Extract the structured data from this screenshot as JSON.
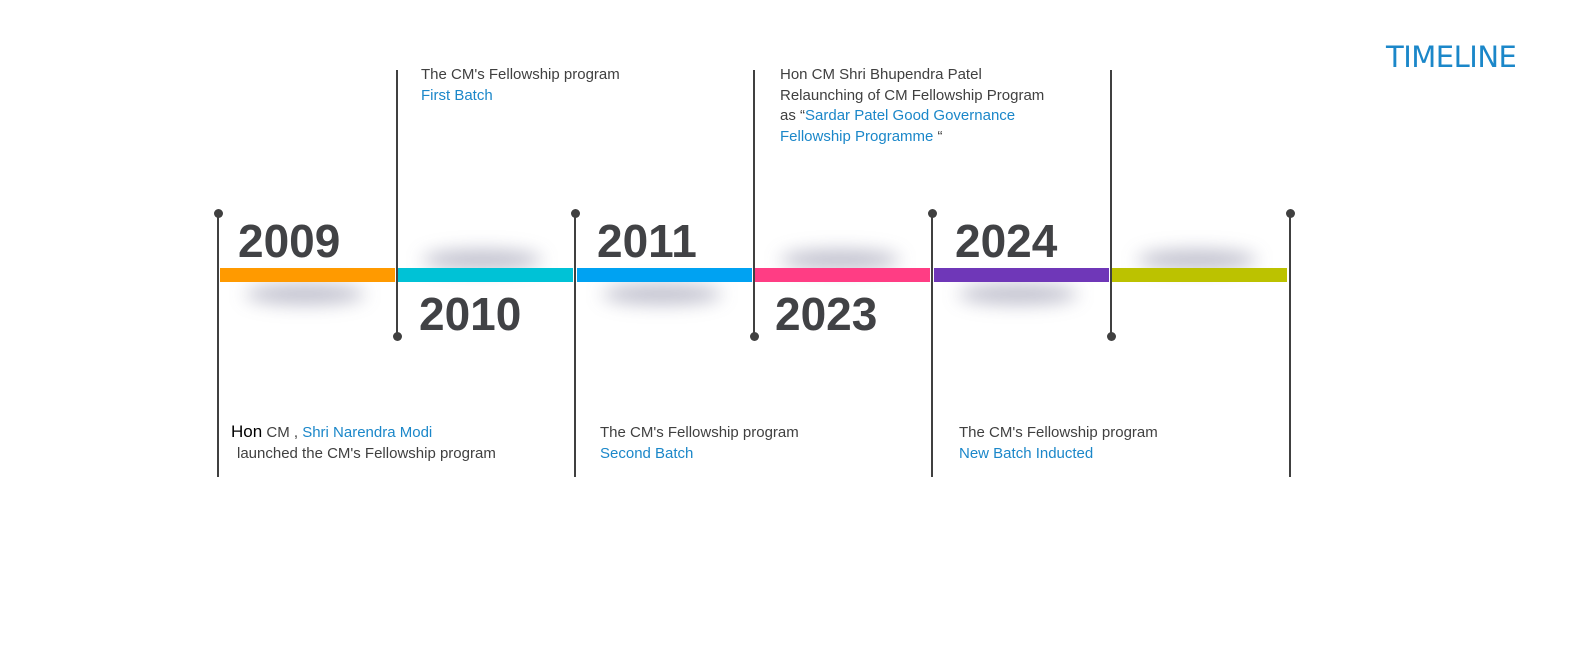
{
  "title": "TIMELINE",
  "colors": {
    "title": "#1b87c9",
    "highlight": "#1b87c9",
    "segments": [
      "#ff9a00",
      "#00c2d6",
      "#00a2f2",
      "#ff3d84",
      "#6f37b8",
      "#bcc200"
    ]
  },
  "years": [
    "2009",
    "2010",
    "2011",
    "2023",
    "2024"
  ],
  "events": {
    "e2009": {
      "hon": "Hon",
      "cm": " CM , ",
      "person": "Shri Narendra Modi",
      "line2": "launched the CM's Fellowship program"
    },
    "e2010": {
      "line1": "The CM's Fellowship program",
      "line2": "First Batch"
    },
    "e2011": {
      "line1": "The CM's Fellowship program",
      "line2": "Second Batch"
    },
    "e2023": {
      "line1": "Hon CM Shri Bhupendra Patel",
      "line2": "Relaunching of CM Fellowship Program",
      "line3_prefix": "as “",
      "line3_highlight": "Sardar Patel Good Governance",
      "line4_highlight": "Fellowship Programme",
      "line4_suffix": " “"
    },
    "e2024": {
      "line1": "The CM's Fellowship program",
      "line2": "New Batch Inducted"
    }
  }
}
